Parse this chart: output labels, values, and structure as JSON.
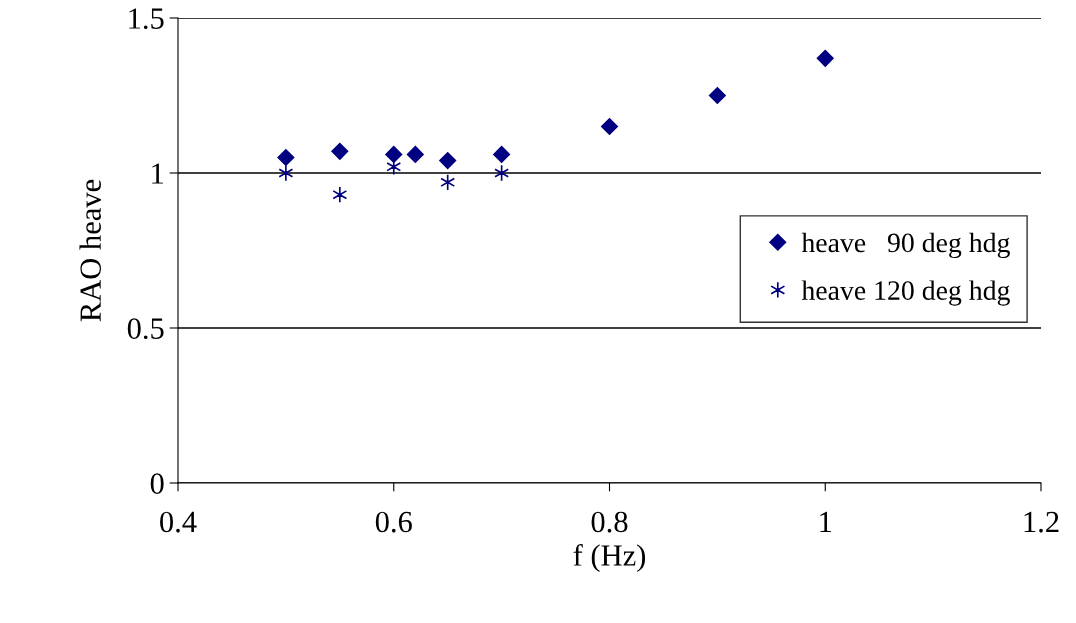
{
  "chart_data": {
    "type": "scatter",
    "xlabel": "f (Hz)",
    "ylabel": "RAO heave",
    "xlim": [
      0.4,
      1.2
    ],
    "xticks": [
      0.4,
      0.6,
      0.8,
      1,
      1.2
    ],
    "ylim": [
      0,
      1.5
    ],
    "yticks": [
      0,
      0.5,
      1,
      1.5
    ],
    "grid": "y",
    "legend": "right",
    "series": [
      {
        "name": "heave   90 deg hdg",
        "color": "#000080",
        "marker": "diamond",
        "x": [
          0.5,
          0.55,
          0.6,
          0.62,
          0.65,
          0.7,
          0.8,
          0.9,
          1.0
        ],
        "values": [
          1.05,
          1.07,
          1.06,
          1.06,
          1.04,
          1.06,
          1.15,
          1.25,
          1.37
        ]
      },
      {
        "name": "heave 120 deg hdg",
        "color": "#000080",
        "marker": "cross",
        "x": [
          0.5,
          0.55,
          0.6,
          0.65,
          0.7
        ],
        "values": [
          1.0,
          0.93,
          1.02,
          0.97,
          1.0
        ]
      }
    ]
  }
}
